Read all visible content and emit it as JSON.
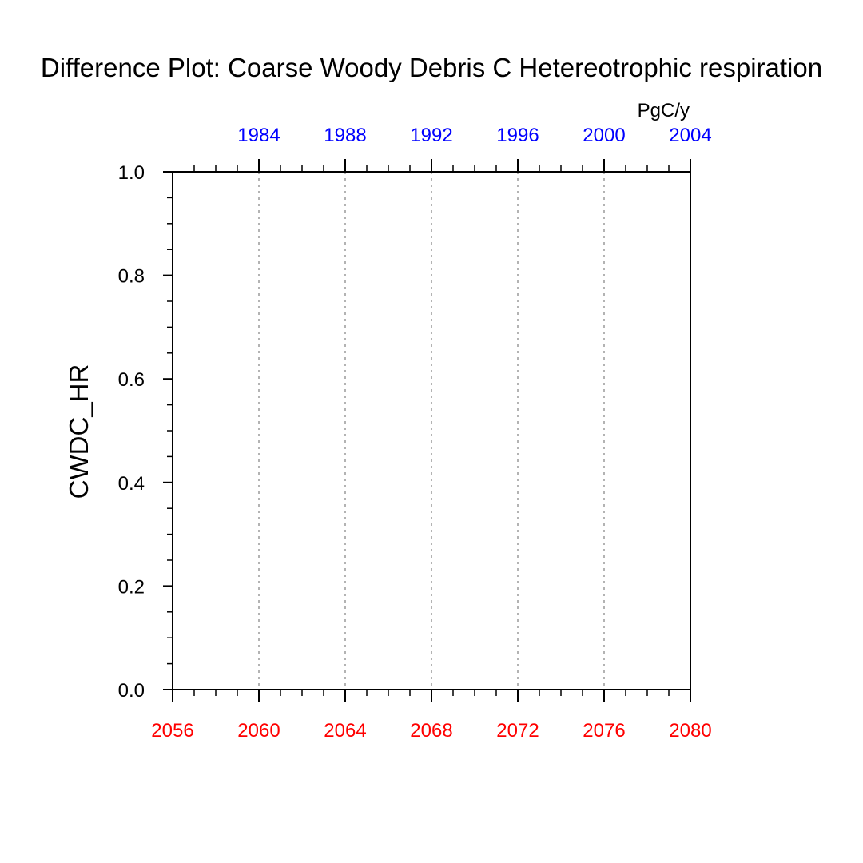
{
  "chart_data": {
    "type": "line",
    "title": "Difference Plot: Coarse Woody Debris C Hetereotrophic respiration",
    "units": "PgC/y",
    "ylabel": "CWDC_HR",
    "ylim": [
      0.0,
      1.0
    ],
    "y_ticks": [
      "0.0",
      "0.2",
      "0.4",
      "0.6",
      "0.8",
      "1.0"
    ],
    "bottom_axis": {
      "range": [
        2056,
        2080
      ],
      "ticks": [
        "2056",
        "2060",
        "2064",
        "2068",
        "2072",
        "2076",
        "2080"
      ],
      "color": "#ff0000"
    },
    "top_axis": {
      "range": [
        1980,
        2004
      ],
      "ticks": [
        "1984",
        "1988",
        "1992",
        "1996",
        "2000",
        "2004"
      ],
      "color": "#0000ff"
    },
    "grid": "vertical dotted at major bottom ticks",
    "series": []
  }
}
